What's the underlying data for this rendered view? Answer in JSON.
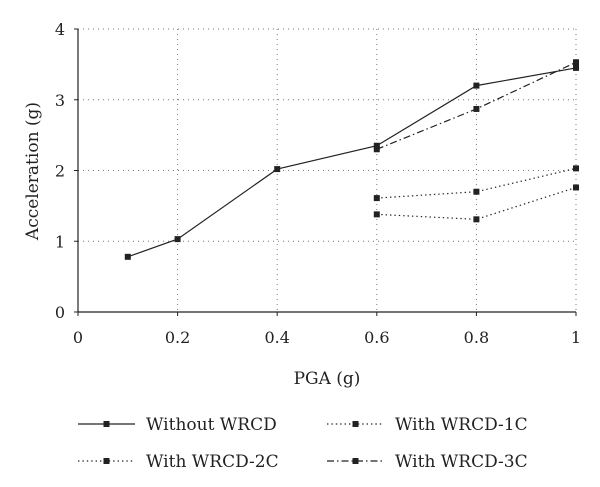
{
  "chart_data": {
    "type": "line",
    "xlabel": "PGA (g)",
    "ylabel": "Acceleration (g)",
    "xlim": [
      0,
      1
    ],
    "ylim": [
      0,
      4
    ],
    "xticks": [
      0,
      0.2,
      0.4,
      0.6,
      0.8,
      1
    ],
    "xtick_labels": [
      "0",
      "0.2",
      "0.4",
      "0.6",
      "0.8",
      "1"
    ],
    "yticks": [
      0,
      1,
      2,
      3,
      4
    ],
    "ytick_labels": [
      "0",
      "1",
      "2",
      "3",
      "4"
    ],
    "grid": true,
    "legend_position": "bottom",
    "series": [
      {
        "name": "Without WRCD",
        "dash": "solid",
        "color": "#222222",
        "x": [
          0.1,
          0.2,
          0.4,
          0.6,
          0.8,
          1
        ],
        "y": [
          0.78,
          1.03,
          2.02,
          2.35,
          3.2,
          3.45
        ]
      },
      {
        "name": "With WRCD-1C",
        "dash": "dotted",
        "color": "#222222",
        "x": [
          0.6,
          0.8,
          1
        ],
        "y": [
          1.61,
          1.7,
          2.03
        ]
      },
      {
        "name": "With WRCD-2C",
        "dash": "dotted",
        "color": "#222222",
        "x": [
          0.6,
          0.8,
          1
        ],
        "y": [
          1.38,
          1.31,
          1.76
        ]
      },
      {
        "name": "With WRCD-3C",
        "dash": "dashdot",
        "color": "#222222",
        "x": [
          0.6,
          0.8,
          1
        ],
        "y": [
          2.3,
          2.87,
          3.53
        ]
      }
    ]
  }
}
